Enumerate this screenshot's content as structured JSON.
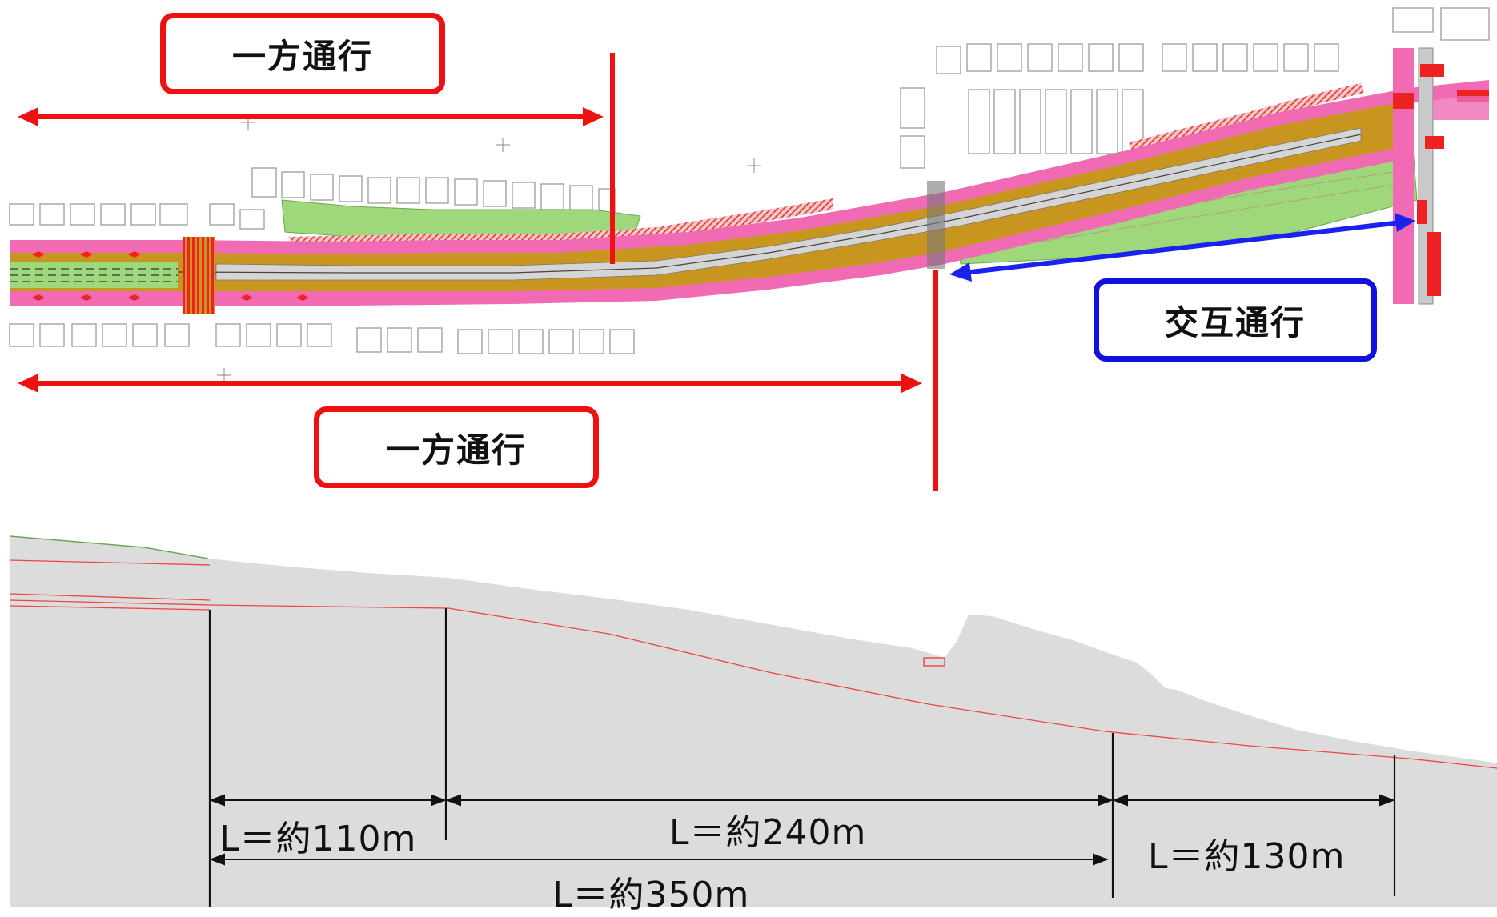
{
  "plan": {
    "one_way_upper_label": "一方通行",
    "one_way_lower_label": "一方通行",
    "alternating_label": "交互通行"
  },
  "profile": {
    "dim_110": "L＝約110m",
    "dim_240": "L＝約240m",
    "dim_350": "L＝約350m",
    "dim_130": "L＝約130m"
  },
  "colors": {
    "red": "#ee1111",
    "blue": "#1a22ee",
    "pink": "#f06bb4",
    "green": "#9fd87a",
    "road_gold": "#c8961e",
    "terrain": "#dcdcdc"
  }
}
